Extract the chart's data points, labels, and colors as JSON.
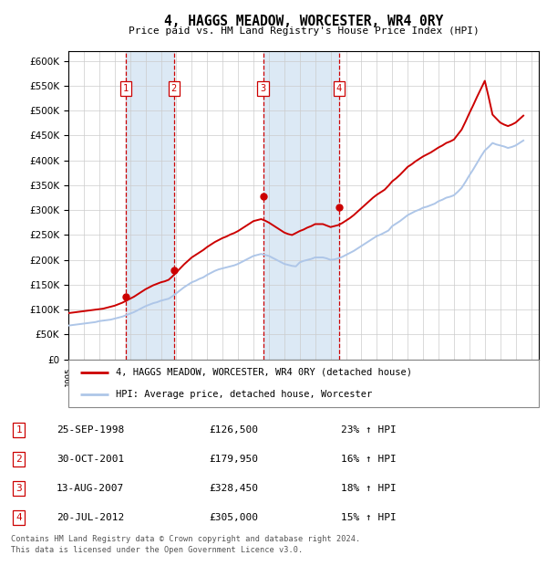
{
  "title": "4, HAGGS MEADOW, WORCESTER, WR4 0RY",
  "subtitle": "Price paid vs. HM Land Registry's House Price Index (HPI)",
  "footer_line1": "Contains HM Land Registry data © Crown copyright and database right 2024.",
  "footer_line2": "This data is licensed under the Open Government Licence v3.0.",
  "legend_line1": "4, HAGGS MEADOW, WORCESTER, WR4 0RY (detached house)",
  "legend_line2": "HPI: Average price, detached house, Worcester",
  "hpi_color": "#aec6e8",
  "price_color": "#cc0000",
  "shade_color": "#dce9f5",
  "grid_color": "#cccccc",
  "ylim": [
    0,
    620000
  ],
  "yticks": [
    0,
    50000,
    100000,
    150000,
    200000,
    250000,
    300000,
    350000,
    400000,
    450000,
    500000,
    550000,
    600000
  ],
  "sales": [
    {
      "num": 1,
      "date": "25-SEP-1998",
      "price": 126500,
      "pct": "23%",
      "dir": "↑",
      "year": 1998.73
    },
    {
      "num": 2,
      "date": "30-OCT-2001",
      "price": 179950,
      "pct": "16%",
      "dir": "↑",
      "year": 2001.83
    },
    {
      "num": 3,
      "date": "13-AUG-2007",
      "price": 328450,
      "pct": "18%",
      "dir": "↑",
      "year": 2007.62
    },
    {
      "num": 4,
      "date": "20-JUL-2012",
      "price": 305000,
      "pct": "15%",
      "dir": "↑",
      "year": 2012.55
    }
  ],
  "hpi_years": [
    1995.0,
    1995.25,
    1995.5,
    1995.75,
    1996.0,
    1996.25,
    1996.5,
    1996.75,
    1997.0,
    1997.25,
    1997.5,
    1997.75,
    1998.0,
    1998.25,
    1998.5,
    1998.75,
    1999.0,
    1999.25,
    1999.5,
    1999.75,
    2000.0,
    2000.25,
    2000.5,
    2000.75,
    2001.0,
    2001.25,
    2001.5,
    2001.75,
    2002.0,
    2002.25,
    2002.5,
    2002.75,
    2003.0,
    2003.25,
    2003.5,
    2003.75,
    2004.0,
    2004.25,
    2004.5,
    2004.75,
    2005.0,
    2005.25,
    2005.5,
    2005.75,
    2006.0,
    2006.25,
    2006.5,
    2006.75,
    2007.0,
    2007.25,
    2007.5,
    2007.75,
    2008.0,
    2008.25,
    2008.5,
    2008.75,
    2009.0,
    2009.25,
    2009.5,
    2009.75,
    2010.0,
    2010.25,
    2010.5,
    2010.75,
    2011.0,
    2011.25,
    2011.5,
    2011.75,
    2012.0,
    2012.25,
    2012.5,
    2012.75,
    2013.0,
    2013.25,
    2013.5,
    2013.75,
    2014.0,
    2014.25,
    2014.5,
    2014.75,
    2015.0,
    2015.25,
    2015.5,
    2015.75,
    2016.0,
    2016.25,
    2016.5,
    2016.75,
    2017.0,
    2017.25,
    2017.5,
    2017.75,
    2018.0,
    2018.25,
    2018.5,
    2018.75,
    2019.0,
    2019.25,
    2019.5,
    2019.75,
    2020.0,
    2020.25,
    2020.5,
    2020.75,
    2021.0,
    2021.25,
    2021.5,
    2021.75,
    2022.0,
    2022.25,
    2022.5,
    2022.75,
    2023.0,
    2023.25,
    2023.5,
    2023.75,
    2024.0,
    2024.25,
    2024.5
  ],
  "hpi_values": [
    68000,
    69000,
    70000,
    71000,
    72000,
    73000,
    74000,
    75000,
    77000,
    78000,
    79000,
    80000,
    82000,
    84000,
    86000,
    89000,
    92000,
    95000,
    99000,
    103000,
    107000,
    110000,
    113000,
    115000,
    118000,
    120000,
    122000,
    127000,
    133000,
    139000,
    145000,
    150000,
    155000,
    158000,
    162000,
    165000,
    170000,
    174000,
    178000,
    181000,
    183000,
    185000,
    187000,
    189000,
    192000,
    196000,
    200000,
    204000,
    208000,
    210000,
    212000,
    210000,
    208000,
    204000,
    200000,
    196000,
    192000,
    190000,
    188000,
    187000,
    195000,
    198000,
    200000,
    202000,
    205000,
    205000,
    205000,
    203000,
    200000,
    201000,
    203000,
    206000,
    210000,
    214000,
    218000,
    223000,
    228000,
    233000,
    238000,
    243000,
    248000,
    251000,
    255000,
    259000,
    268000,
    273000,
    278000,
    284000,
    290000,
    294000,
    298000,
    301000,
    305000,
    307000,
    310000,
    313000,
    318000,
    321000,
    325000,
    327000,
    330000,
    337000,
    345000,
    357000,
    370000,
    382000,
    395000,
    408000,
    420000,
    427000,
    435000,
    432000,
    430000,
    428000,
    425000,
    427000,
    430000,
    435000,
    440000
  ],
  "price_years": [
    1995.0,
    1995.25,
    1995.5,
    1995.75,
    1996.0,
    1996.25,
    1996.5,
    1996.75,
    1997.0,
    1997.25,
    1997.5,
    1997.75,
    1998.0,
    1998.25,
    1998.5,
    1998.75,
    1999.0,
    1999.25,
    1999.5,
    1999.75,
    2000.0,
    2000.25,
    2000.5,
    2000.75,
    2001.0,
    2001.25,
    2001.5,
    2001.75,
    2002.0,
    2002.25,
    2002.5,
    2002.75,
    2003.0,
    2003.25,
    2003.5,
    2003.75,
    2004.0,
    2004.25,
    2004.5,
    2004.75,
    2005.0,
    2005.25,
    2005.5,
    2005.75,
    2006.0,
    2006.25,
    2006.5,
    2006.75,
    2007.0,
    2007.25,
    2007.5,
    2007.75,
    2008.0,
    2008.25,
    2008.5,
    2008.75,
    2009.0,
    2009.25,
    2009.5,
    2009.75,
    2010.0,
    2010.25,
    2010.5,
    2010.75,
    2011.0,
    2011.25,
    2011.5,
    2011.75,
    2012.0,
    2012.25,
    2012.5,
    2012.75,
    2013.0,
    2013.25,
    2013.5,
    2013.75,
    2014.0,
    2014.25,
    2014.5,
    2014.75,
    2015.0,
    2015.25,
    2015.5,
    2015.75,
    2016.0,
    2016.25,
    2016.5,
    2016.75,
    2017.0,
    2017.25,
    2017.5,
    2017.75,
    2018.0,
    2018.25,
    2018.5,
    2018.75,
    2019.0,
    2019.25,
    2019.5,
    2019.75,
    2020.0,
    2020.25,
    2020.5,
    2020.75,
    2021.0,
    2021.25,
    2021.5,
    2021.75,
    2022.0,
    2022.25,
    2022.5,
    2022.75,
    2023.0,
    2023.25,
    2023.5,
    2023.75,
    2024.0,
    2024.25,
    2024.5
  ],
  "price_values": [
    93000,
    94000,
    95000,
    96000,
    97000,
    98000,
    99000,
    100000,
    101000,
    102000,
    104000,
    106000,
    108000,
    111000,
    114000,
    118000,
    122000,
    126000,
    131000,
    136000,
    141000,
    145000,
    149000,
    152000,
    155000,
    157000,
    160000,
    167000,
    175000,
    183000,
    191000,
    198000,
    205000,
    210000,
    215000,
    220000,
    226000,
    231000,
    236000,
    240000,
    244000,
    247000,
    251000,
    254000,
    258000,
    263000,
    268000,
    273000,
    278000,
    280000,
    282000,
    279000,
    275000,
    270000,
    265000,
    260000,
    255000,
    252000,
    250000,
    254000,
    258000,
    261000,
    265000,
    268000,
    272000,
    272000,
    272000,
    269000,
    266000,
    268000,
    270000,
    274000,
    279000,
    284000,
    290000,
    297000,
    304000,
    311000,
    318000,
    325000,
    331000,
    336000,
    341000,
    349000,
    358000,
    364000,
    371000,
    379000,
    387000,
    392000,
    398000,
    403000,
    408000,
    412000,
    416000,
    421000,
    426000,
    430000,
    435000,
    438000,
    442000,
    452000,
    462000,
    478000,
    495000,
    511000,
    528000,
    544000,
    560000,
    527000,
    492000,
    484000,
    476000,
    472000,
    469000,
    472000,
    476000,
    483000,
    490000
  ]
}
